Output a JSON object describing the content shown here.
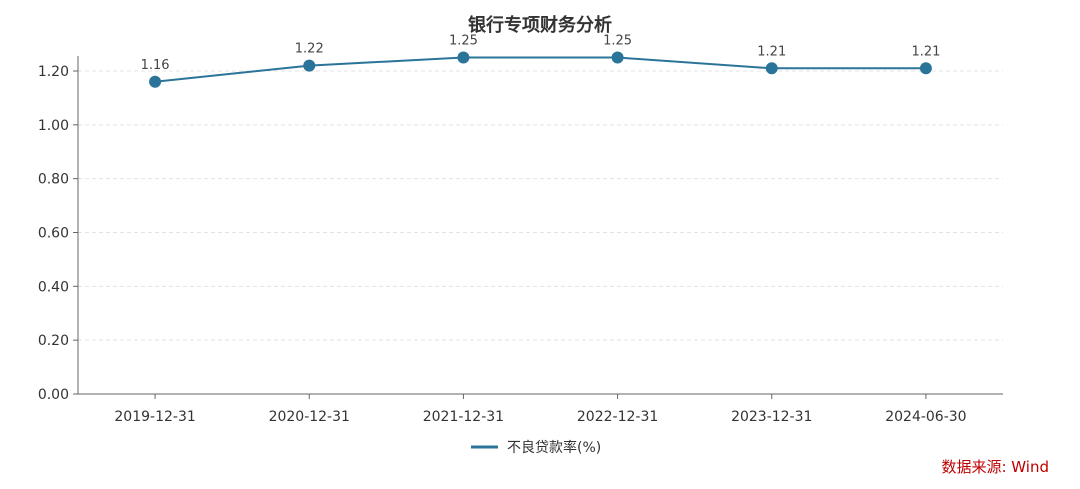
{
  "chart_data": {
    "type": "line",
    "title": "银行专项财务分析",
    "categories": [
      "2019-12-31",
      "2020-12-31",
      "2021-12-31",
      "2022-12-31",
      "2023-12-31",
      "2024-06-30"
    ],
    "series": [
      {
        "name": "不良贷款率(%)",
        "values": [
          1.16,
          1.22,
          1.25,
          1.25,
          1.21,
          1.21
        ],
        "labels": [
          "1.16",
          "1.22",
          "1.25",
          "1.25",
          "1.21",
          "1.21"
        ],
        "color": "#2b7499"
      }
    ],
    "yticks": [
      "0.00",
      "0.20",
      "0.40",
      "0.60",
      "0.80",
      "1.00",
      "1.20"
    ],
    "ylim": [
      0,
      1.2
    ],
    "grid": true,
    "legend_position": "bottom-center"
  },
  "source": "数据来源: Wind"
}
